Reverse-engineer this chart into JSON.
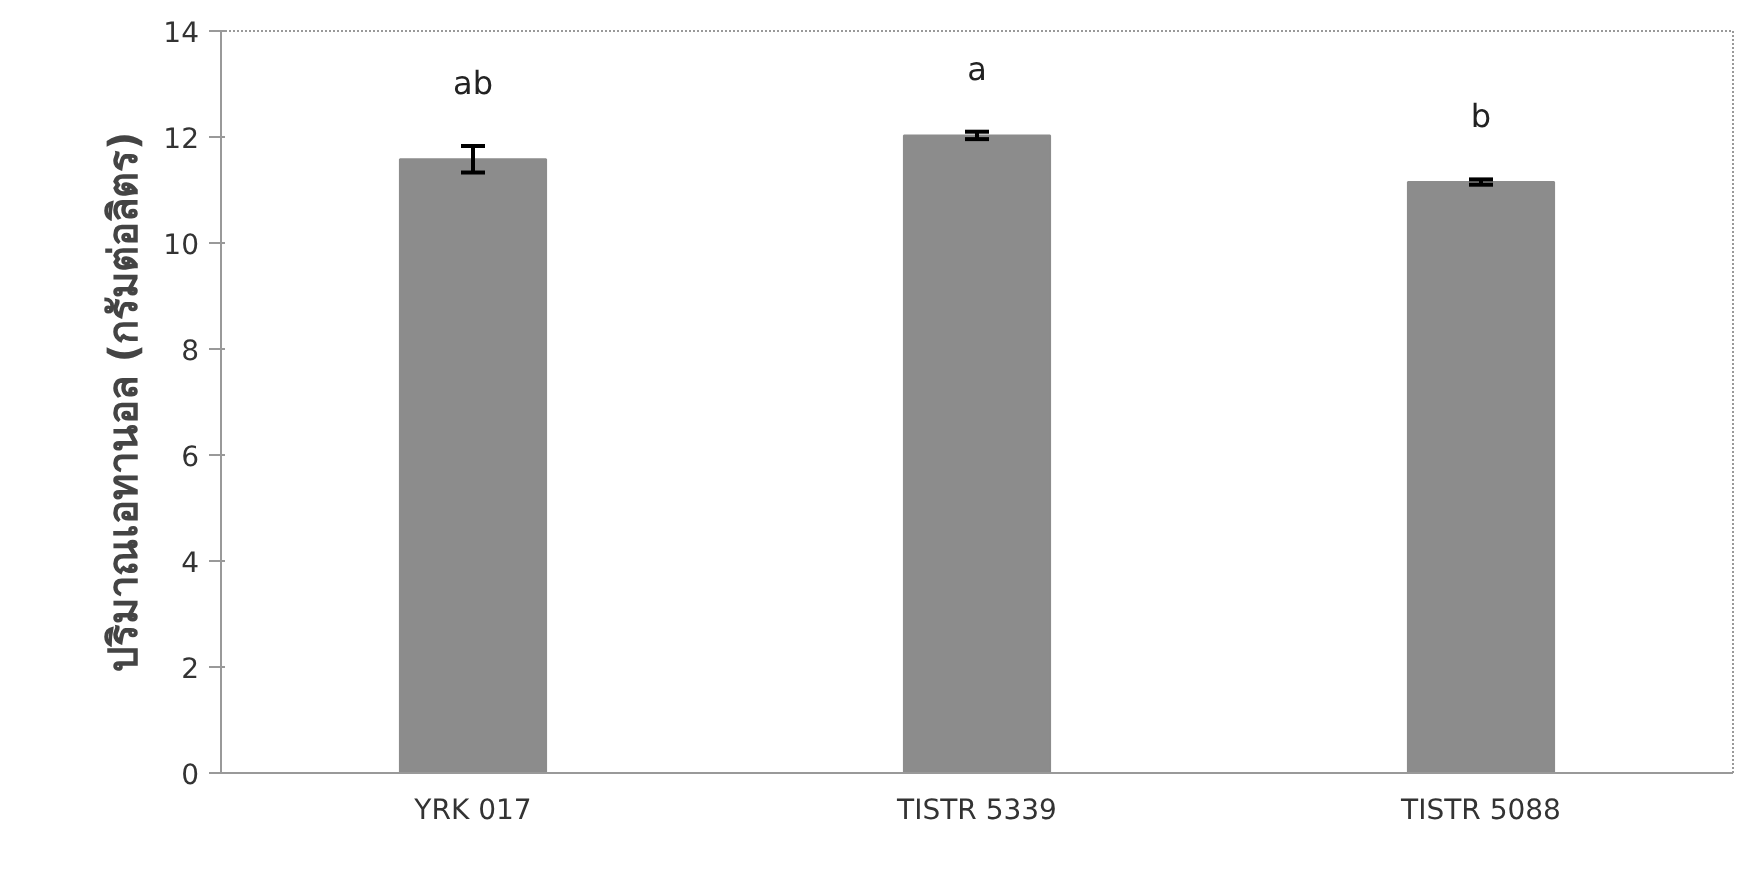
{
  "chart_data": {
    "type": "bar",
    "ylabel": "ปริมาณเอทานอล (กรัมต่อลิตร)",
    "categories": [
      "YRK 017",
      "TISTR 5339",
      "TISTR 5088"
    ],
    "values": [
      11.58,
      12.03,
      11.15
    ],
    "color": "#8c8c8c",
    "errors": [
      0.25,
      0.07,
      0.05
    ],
    "ylim": [
      0,
      14
    ],
    "yticks": [
      0,
      2,
      4,
      6,
      8,
      10,
      12,
      14
    ],
    "grid": false,
    "annotations": [
      "ab",
      "a",
      "b"
    ]
  }
}
